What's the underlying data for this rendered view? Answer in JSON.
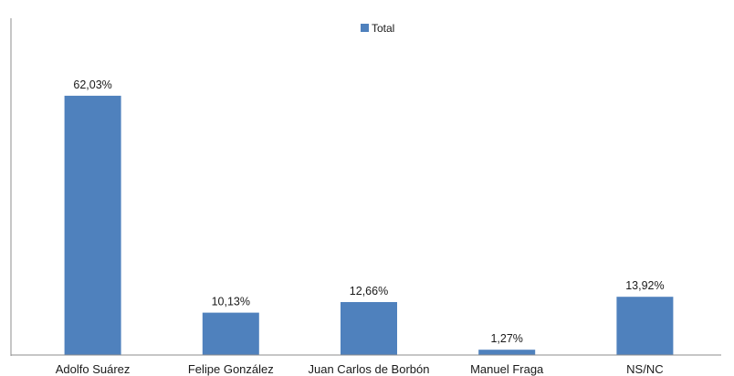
{
  "colors": {
    "bar": "#4f81bd",
    "axis": "#8c8c8c"
  },
  "chart_data": {
    "type": "bar",
    "categories": [
      "Adolfo Suárez",
      "Felipe González",
      "Juan Carlos de Borbón",
      "Manuel Fraga",
      "NS/NC"
    ],
    "series": [
      {
        "name": "Total",
        "values": [
          62.03,
          10.13,
          12.66,
          1.27,
          13.92
        ]
      }
    ],
    "data_labels": [
      "62,03%",
      "10,13%",
      "12,66%",
      "1,27%",
      "13,92%"
    ],
    "ylim": [
      0,
      70
    ],
    "grid": false,
    "legend_position": "top-center"
  }
}
